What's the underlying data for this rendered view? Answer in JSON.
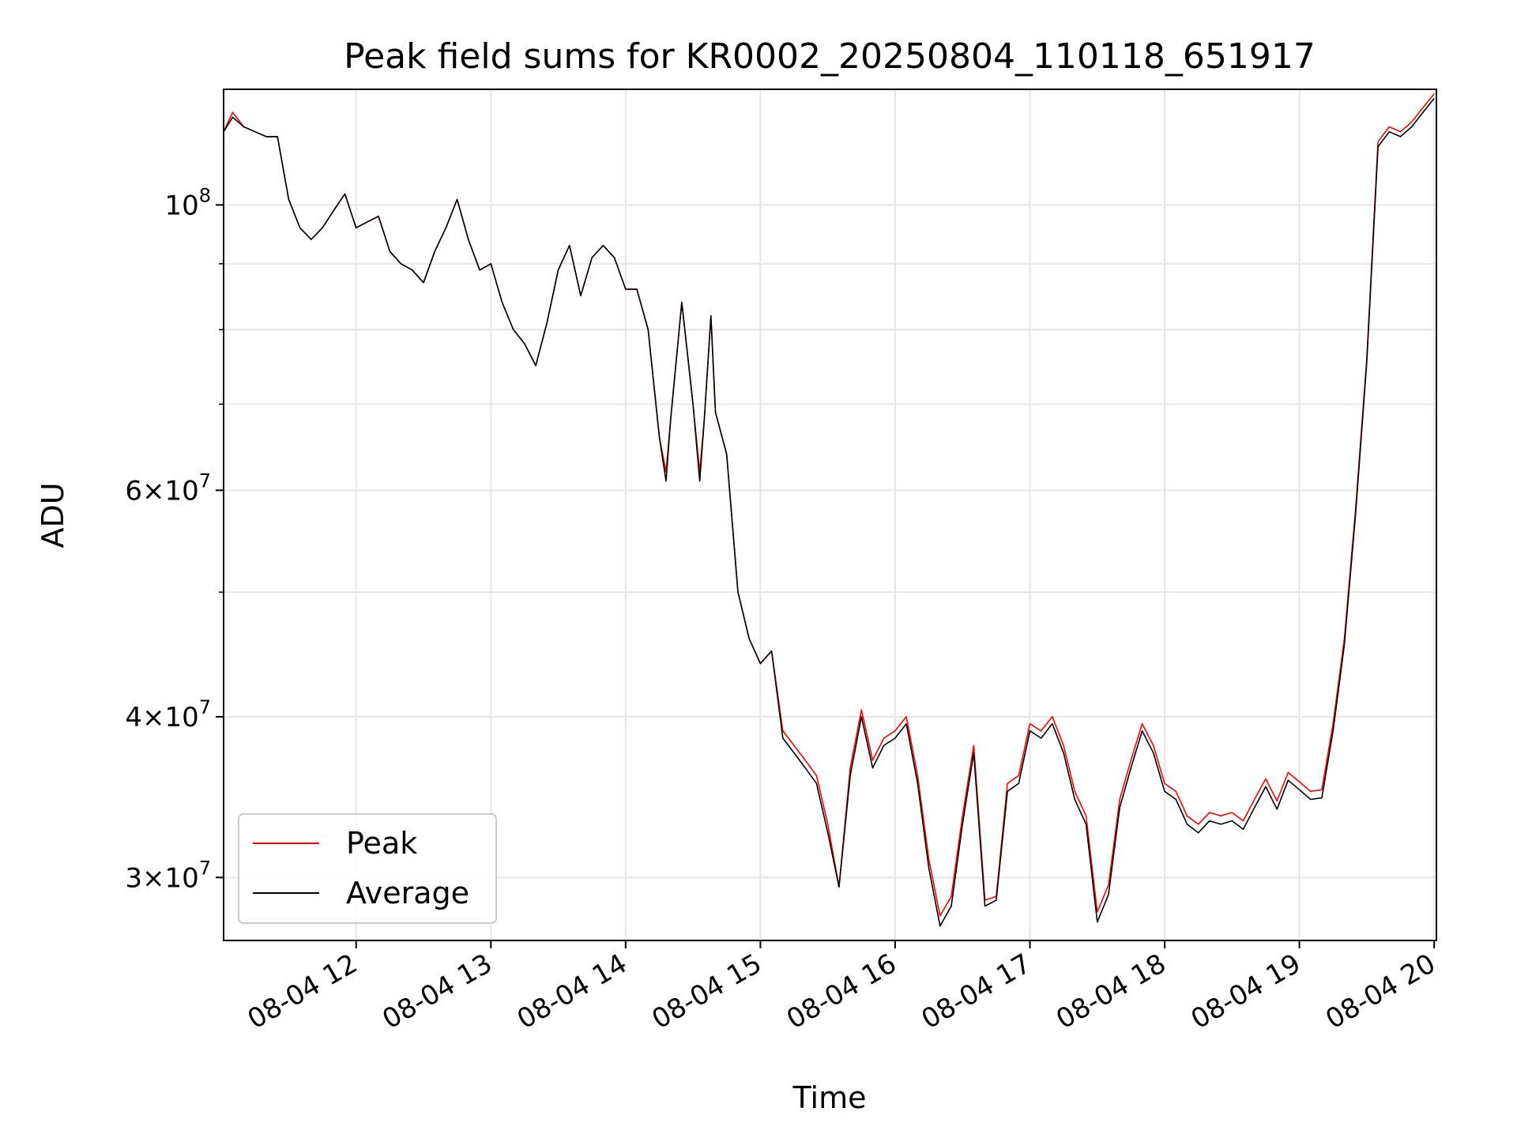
{
  "chart_data": {
    "type": "line",
    "title": "Peak field sums for KR0002_20250804_110118_651917",
    "xlabel": "Time",
    "ylabel": "ADU",
    "yscale": "log",
    "ylim": [
      26800000,
      123000000
    ],
    "xlim": [
      "08-04 11:01",
      "08-04 20:01"
    ],
    "grid": true,
    "legend_placement": "lower-left",
    "x_ticks": [
      "08-04 12",
      "08-04 13",
      "08-04 14",
      "08-04 15",
      "08-04 16",
      "08-04 17",
      "08-04 18",
      "08-04 19",
      "08-04 20"
    ],
    "y_ticks": [
      {
        "value": 100000000,
        "mantissa": "",
        "base": "10",
        "exp": "8"
      },
      {
        "value": 60000000,
        "mantissa": "6×",
        "base": "10",
        "exp": "7"
      },
      {
        "value": 40000000,
        "mantissa": "4×",
        "base": "10",
        "exp": "7"
      },
      {
        "value": 30000000,
        "mantissa": "3×",
        "base": "10",
        "exp": "7"
      }
    ],
    "y_minor_ticks": [
      90000000,
      80000000,
      70000000,
      50000000
    ],
    "series": [
      {
        "name": "Peak",
        "color": "#ff0000"
      },
      {
        "name": "Average",
        "color": "#000000"
      }
    ],
    "x": [
      "08-04 11:01",
      "08-04 11:05",
      "08-04 11:10",
      "08-04 11:15",
      "08-04 11:20",
      "08-04 11:25",
      "08-04 11:30",
      "08-04 11:35",
      "08-04 11:40",
      "08-04 11:45",
      "08-04 11:50",
      "08-04 11:55",
      "08-04 12:00",
      "08-04 12:05",
      "08-04 12:10",
      "08-04 12:15",
      "08-04 12:20",
      "08-04 12:25",
      "08-04 12:30",
      "08-04 12:35",
      "08-04 12:40",
      "08-04 12:45",
      "08-04 12:50",
      "08-04 12:55",
      "08-04 13:00",
      "08-04 13:05",
      "08-04 13:10",
      "08-04 13:15",
      "08-04 13:20",
      "08-04 13:25",
      "08-04 13:30",
      "08-04 13:35",
      "08-04 13:40",
      "08-04 13:45",
      "08-04 13:50",
      "08-04 13:55",
      "08-04 14:00",
      "08-04 14:05",
      "08-04 14:10",
      "08-04 14:15",
      "08-04 14:18",
      "08-04 14:20",
      "08-04 14:25",
      "08-04 14:30",
      "08-04 14:33",
      "08-04 14:35",
      "08-04 14:38",
      "08-04 14:40",
      "08-04 14:45",
      "08-04 14:50",
      "08-04 14:55",
      "08-04 15:00",
      "08-04 15:05",
      "08-04 15:10",
      "08-04 15:15",
      "08-04 15:20",
      "08-04 15:25",
      "08-04 15:30",
      "08-04 15:35",
      "08-04 15:40",
      "08-04 15:45",
      "08-04 15:50",
      "08-04 15:55",
      "08-04 16:00",
      "08-04 16:05",
      "08-04 16:10",
      "08-04 16:15",
      "08-04 16:20",
      "08-04 16:25",
      "08-04 16:30",
      "08-04 16:35",
      "08-04 16:40",
      "08-04 16:45",
      "08-04 16:50",
      "08-04 16:55",
      "08-04 17:00",
      "08-04 17:05",
      "08-04 17:10",
      "08-04 17:15",
      "08-04 17:20",
      "08-04 17:25",
      "08-04 17:30",
      "08-04 17:35",
      "08-04 17:40",
      "08-04 17:45",
      "08-04 17:50",
      "08-04 17:55",
      "08-04 18:00",
      "08-04 18:05",
      "08-04 18:10",
      "08-04 18:15",
      "08-04 18:20",
      "08-04 18:25",
      "08-04 18:30",
      "08-04 18:35",
      "08-04 18:40",
      "08-04 18:45",
      "08-04 18:50",
      "08-04 18:55",
      "08-04 19:00",
      "08-04 19:05",
      "08-04 19:10",
      "08-04 19:15",
      "08-04 19:20",
      "08-04 19:25",
      "08-04 19:30",
      "08-04 19:35",
      "08-04 19:40",
      "08-04 19:45",
      "08-04 19:50",
      "08-04 19:55",
      "08-04 20:00"
    ],
    "values": [
      [
        114000000,
        118000000,
        115000000,
        114000000,
        113000000,
        113000000,
        101000000,
        96000000,
        94000000,
        96000000,
        99000000,
        102000000,
        96000000,
        97000000,
        98000000,
        92000000,
        90000000,
        89000000,
        87000000,
        92000000,
        96000000,
        101000000,
        94000000,
        89000000,
        90000000,
        84000000,
        80000000,
        78000000,
        75000000,
        81000000,
        89000000,
        93000000,
        85000000,
        91000000,
        93000000,
        91000000,
        86000000,
        86000000,
        80000000,
        66000000,
        62000000,
        68000000,
        84000000,
        70000000,
        62000000,
        68000000,
        82000000,
        69000000,
        64000000,
        50000000,
        46000000,
        44000000,
        45000000,
        39000000,
        38000000,
        37000000,
        36000000,
        33000000,
        29500000,
        36500000,
        40500000,
        37000000,
        38500000,
        39000000,
        40000000,
        36000000,
        31000000,
        28000000,
        29000000,
        33500000,
        38000000,
        28800000,
        29000000,
        35500000,
        36000000,
        39500000,
        39000000,
        40000000,
        38000000,
        35000000,
        33500000,
        28200000,
        29600000,
        34500000,
        37000000,
        39500000,
        38000000,
        35500000,
        35000000,
        33500000,
        33000000,
        33700000,
        33500000,
        33700000,
        33200000,
        34500000,
        35800000,
        34400000,
        36200000,
        35600000,
        35000000,
        35100000,
        39500000,
        46000000,
        58000000,
        76000000,
        112000000,
        115000000,
        114000000,
        116000000,
        119000000,
        122000000
      ],
      [
        114000000,
        117000000,
        115000000,
        114000000,
        113000000,
        113000000,
        101000000,
        96000000,
        94000000,
        96000000,
        99000000,
        102000000,
        96000000,
        97000000,
        98000000,
        92000000,
        90000000,
        89000000,
        87000000,
        92000000,
        96000000,
        101000000,
        94000000,
        89000000,
        90000000,
        84000000,
        80000000,
        78000000,
        75000000,
        81000000,
        89000000,
        93000000,
        85000000,
        91000000,
        93000000,
        91000000,
        86000000,
        86000000,
        80000000,
        66000000,
        61000000,
        68000000,
        84000000,
        70000000,
        61000000,
        68000000,
        82000000,
        69000000,
        64000000,
        50000000,
        46000000,
        44000000,
        45000000,
        38500000,
        37500000,
        36500000,
        35500000,
        32500000,
        29500000,
        36000000,
        40000000,
        36500000,
        38000000,
        38500000,
        39500000,
        35500000,
        30500000,
        27500000,
        28500000,
        33000000,
        37500000,
        28500000,
        28800000,
        35000000,
        35500000,
        39000000,
        38500000,
        39500000,
        37500000,
        34500000,
        33000000,
        27700000,
        29100000,
        34000000,
        36500000,
        39000000,
        37500000,
        35000000,
        34500000,
        33000000,
        32500000,
        33200000,
        33000000,
        33200000,
        32700000,
        34000000,
        35300000,
        33900000,
        35700000,
        35100000,
        34500000,
        34600000,
        39000000,
        45500000,
        57500000,
        75500000,
        111000000,
        114000000,
        113000000,
        115000000,
        118000000,
        121000000
      ]
    ]
  }
}
